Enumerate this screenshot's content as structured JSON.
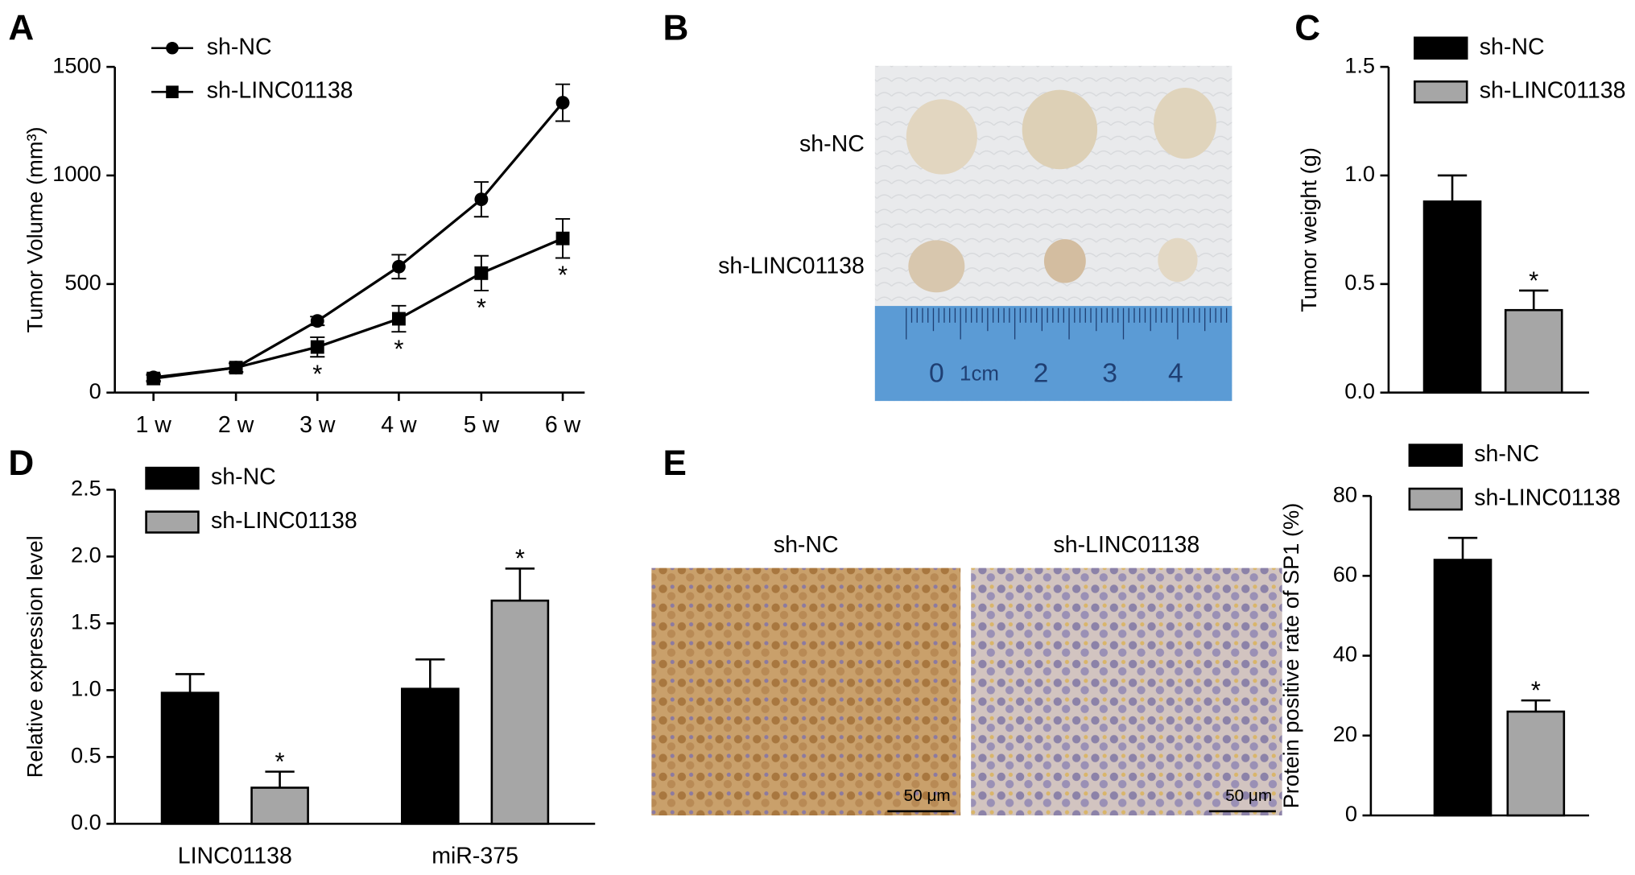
{
  "chart_data": [
    {
      "panel": "A",
      "type": "line",
      "ylabel": "Tumor Volume (mm³)",
      "categories": [
        "1 w",
        "2 w",
        "3 w",
        "4 w",
        "5 w",
        "6 w"
      ],
      "ylim": [
        0,
        1500
      ],
      "yticks": [
        0,
        500,
        1000,
        1500
      ],
      "series": [
        {
          "name": "sh-NC",
          "color": "#000000",
          "marker": "circle",
          "values": [
            70,
            115,
            330,
            580,
            890,
            1335
          ],
          "errors": [
            15,
            20,
            20,
            55,
            80,
            85
          ]
        },
        {
          "name": "sh-LINC01138",
          "color": "#000000",
          "marker": "square",
          "values": [
            65,
            115,
            210,
            340,
            550,
            710
          ],
          "errors": [
            15,
            20,
            45,
            60,
            80,
            90
          ],
          "annotations": [
            null,
            null,
            "*",
            "*",
            "*",
            "*"
          ]
        }
      ]
    },
    {
      "panel": "C",
      "type": "bar",
      "ylabel": "Tumor weight (g)",
      "categories": [
        null
      ],
      "ylim": [
        0,
        1.5
      ],
      "yticks": [
        {
          "value": 0,
          "label": "0.0"
        },
        {
          "value": 0.5,
          "label": "0.5"
        },
        {
          "value": 1,
          "label": "1.0"
        },
        {
          "value": 1.5,
          "label": "1.5"
        }
      ],
      "series": [
        {
          "name": "sh-NC",
          "color": "#000000",
          "values": [
            0.88
          ],
          "errors": [
            0.12
          ]
        },
        {
          "name": "sh-LINC01138",
          "color": "#a6a6a6",
          "values": [
            0.38
          ],
          "errors": [
            0.09
          ],
          "annotations": [
            "*"
          ]
        }
      ]
    },
    {
      "panel": "D",
      "type": "bar",
      "ylabel": "Relative expression level",
      "categories": [
        "LINC01138",
        "miR-375"
      ],
      "ylim": [
        0,
        2.5
      ],
      "yticks": [
        {
          "value": 0,
          "label": "0.0"
        },
        {
          "value": 0.5,
          "label": "0.5"
        },
        {
          "value": 1,
          "label": "1.0"
        },
        {
          "value": 1.5,
          "label": "1.5"
        },
        {
          "value": 2,
          "label": "2.0"
        },
        {
          "value": 2.5,
          "label": "2.5"
        }
      ],
      "series": [
        {
          "name": "sh-NC",
          "color": "#000000",
          "values": [
            0.98,
            1.01
          ],
          "errors": [
            0.14,
            0.22
          ]
        },
        {
          "name": "sh-LINC01138",
          "color": "#a6a6a6",
          "values": [
            0.27,
            1.67
          ],
          "errors": [
            0.12,
            0.24
          ],
          "annotations": [
            "*",
            "*"
          ]
        }
      ]
    },
    {
      "panel": "E",
      "type": "bar",
      "ylabel": "Protein positive rate of SP1 (%)",
      "categories": [
        null
      ],
      "ylim": [
        0,
        80
      ],
      "yticks": [
        0,
        20,
        40,
        60,
        80
      ],
      "series": [
        {
          "name": "sh-NC",
          "color": "#000000",
          "values": [
            64
          ],
          "errors": [
            5.5
          ]
        },
        {
          "name": "sh-LINC01138",
          "color": "#a6a6a6",
          "values": [
            26
          ],
          "errors": [
            2.8
          ],
          "annotations": [
            "*"
          ]
        }
      ]
    }
  ],
  "panels": {
    "B": {
      "panel": "B",
      "rows": [
        "sh-NC",
        "sh-LINC01138"
      ],
      "ruler": [
        "0",
        "1cm",
        "2",
        "3",
        "4"
      ]
    },
    "E": {
      "columns": [
        "sh-NC",
        "sh-LINC01138"
      ],
      "scale_bar": "50 μm"
    }
  }
}
